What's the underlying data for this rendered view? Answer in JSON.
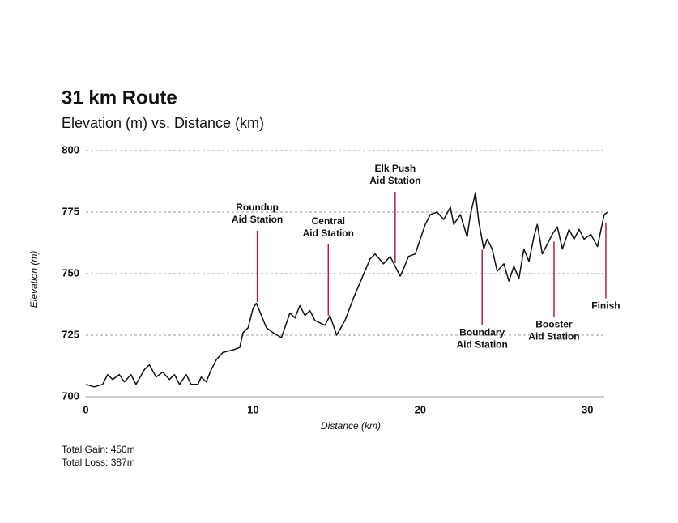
{
  "chart_data": {
    "type": "line",
    "title": "31 km Route",
    "subtitle": "Elevation (m) vs. Distance (km)",
    "xlabel": "Distance (km)",
    "ylabel": "Elevation (m)",
    "xlim": [
      0,
      31.2
    ],
    "xticks": [
      0,
      10,
      20,
      30
    ],
    "ylim": [
      700,
      800
    ],
    "yticks": [
      700,
      725,
      750,
      775,
      800
    ],
    "grid": true,
    "series": [
      {
        "name": "Elevation",
        "color": "#111111",
        "x": [
          0,
          0.5,
          1,
          1.3,
          1.6,
          2,
          2.3,
          2.7,
          3,
          3.5,
          3.8,
          4.2,
          4.6,
          5,
          5.3,
          5.6,
          6,
          6.3,
          6.7,
          6.9,
          7.2,
          7.5,
          7.8,
          8.2,
          8.8,
          9.2,
          9.4,
          9.7,
          10,
          10.2,
          10.5,
          10.8,
          11.2,
          11.7,
          12,
          12.2,
          12.5,
          12.8,
          13.1,
          13.4,
          13.7,
          14,
          14.3,
          14.6,
          15,
          15.5,
          16,
          16.5,
          17,
          17.3,
          17.8,
          18.2,
          18.5,
          18.8,
          19,
          19.3,
          19.7,
          20,
          20.3,
          20.6,
          21,
          21.4,
          21.8,
          22,
          22.4,
          22.8,
          23,
          23.3,
          23.5,
          23.8,
          24,
          24.3,
          24.6,
          25,
          25.3,
          25.6,
          25.9,
          26.2,
          26.5,
          26.8,
          27,
          27.3,
          27.6,
          27.9,
          28.2,
          28.5,
          28.9,
          29.2,
          29.5,
          29.8,
          30.2,
          30.6,
          31,
          31.2
        ],
        "values": [
          705,
          704,
          705,
          709,
          707,
          709,
          706,
          709,
          705,
          711,
          713,
          708,
          710,
          707,
          709,
          705,
          709,
          705,
          705,
          708,
          706,
          711,
          715,
          718,
          719,
          720,
          726,
          728,
          736,
          738,
          733,
          728,
          726,
          724,
          730,
          734,
          732,
          737,
          733,
          735,
          731,
          730,
          729,
          733,
          725,
          731,
          740,
          748,
          756,
          758,
          754,
          757,
          753,
          749,
          752,
          757,
          758,
          764,
          770,
          774,
          775,
          772,
          777,
          770,
          774,
          765,
          774,
          783,
          771,
          760,
          764,
          760,
          751,
          754,
          747,
          753,
          748,
          760,
          755,
          765,
          770,
          758,
          762,
          766,
          769,
          760,
          768,
          764,
          768,
          764,
          766,
          761,
          774,
          775
        ]
      }
    ],
    "annotations": [
      {
        "x": 10.25,
        "position": "above",
        "lines": [
          "Roundup",
          "Aid Station"
        ]
      },
      {
        "x": 14.5,
        "position": "above",
        "lines": [
          "Central",
          "Aid Station"
        ]
      },
      {
        "x": 18.5,
        "position": "above",
        "lines": [
          "Elk Push",
          "Aid Station"
        ]
      },
      {
        "x": 23.7,
        "position": "below",
        "lines": [
          "Boundary",
          "Aid Station"
        ]
      },
      {
        "x": 28.0,
        "position": "below",
        "lines": [
          "Booster",
          "Aid Station"
        ]
      },
      {
        "x": 31.1,
        "position": "below",
        "lines": [
          "Finish"
        ]
      }
    ],
    "notes": [
      "Total Gain: 450m",
      "Total Loss: 387m"
    ]
  }
}
